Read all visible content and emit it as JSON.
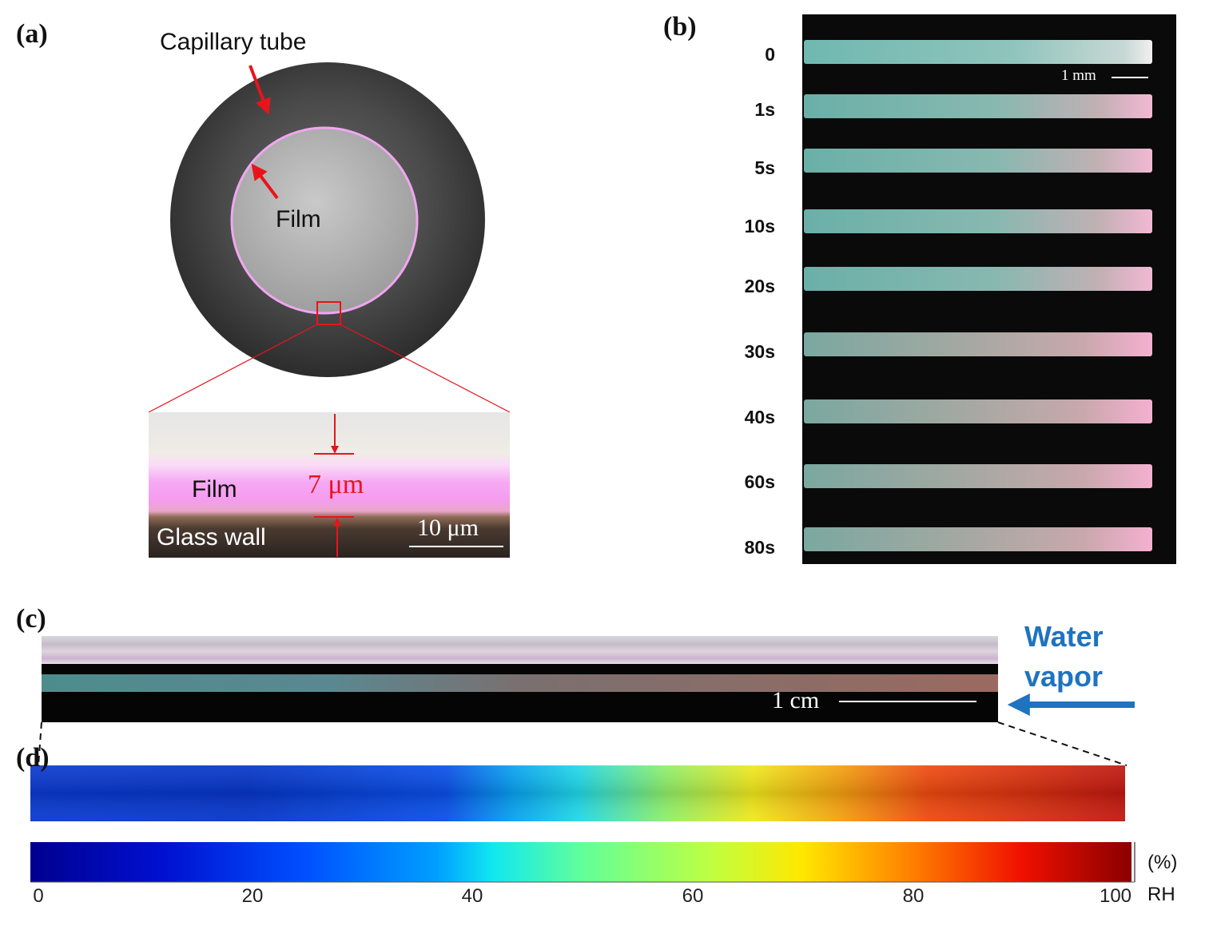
{
  "panels": {
    "a": {
      "label": "(a)",
      "capillary_label": "Capillary tube",
      "film_label": "Film",
      "zoom": {
        "film_label": "Film",
        "thickness_label": "7 μm",
        "glass_label": "Glass wall",
        "scale_label": "10 μm"
      }
    },
    "b": {
      "label": "(b)",
      "times": [
        "0",
        "1s",
        "5s",
        "10s",
        "20s",
        "30s",
        "40s",
        "60s",
        "80s"
      ],
      "scale_label": "1 mm"
    },
    "c": {
      "label": "(c)",
      "scale_label": "1 cm",
      "vapor_label_line1": "Water",
      "vapor_label_line2": "vapor"
    },
    "d": {
      "label": "(d)",
      "colorbar": {
        "ticks": [
          "0",
          "20",
          "40",
          "60",
          "80",
          "100"
        ],
        "unit_label": "(%)",
        "quantity_label": "RH"
      }
    }
  },
  "colors": {
    "arrow_red": "#e8141c",
    "vapor_blue": "#1f73c0",
    "film_pink": "#f0a6f0"
  }
}
